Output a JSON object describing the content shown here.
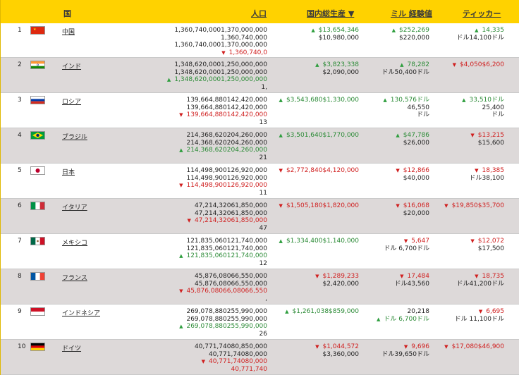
{
  "header": {
    "country": "国",
    "population": "人口",
    "gdp": "国内総生産 ▼",
    "military": "ミル 経験値",
    "ticker": "ティッカー"
  },
  "rows": [
    {
      "rank": "1",
      "flag": "china",
      "name": "中国",
      "pop": [
        {
          "t": "1,360,740,0001,370,000,000"
        },
        {
          "t": "1,360,740,000"
        },
        {
          "t": "1,360,740,0001,370,000,000"
        },
        {
          "t": "1,360,740,0",
          "c": "red",
          "a": "dn"
        }
      ],
      "gdp": [
        {
          "t": "$13,654,346",
          "c": "green",
          "a": "up"
        },
        {
          "t": "$10,980,000"
        }
      ],
      "mil": [
        {
          "t": "$252,269",
          "c": "green",
          "a": "up"
        },
        {
          "t": "$220,000"
        }
      ],
      "tic": [
        {
          "t": "14,335",
          "c": "green",
          "a": "up"
        },
        {
          "t": "ドル14,100ドル"
        }
      ]
    },
    {
      "rank": "2",
      "flag": "india",
      "name": "インド",
      "pop": [
        {
          "t": "1,348,620,0001,250,000,000"
        },
        {
          "t": "1,348,620,0001,250,000,000"
        },
        {
          "t": "1,348,620,0001,250,000,000",
          "c": "green",
          "a": "up"
        },
        {
          "t": "1,"
        }
      ],
      "gdp": [
        {
          "t": "$3,823,338",
          "c": "green",
          "a": "up"
        },
        {
          "t": "$2,090,000"
        }
      ],
      "mil": [
        {
          "t": "78,282",
          "c": "green",
          "a": "up"
        },
        {
          "t": "ドル50,400ドル"
        }
      ],
      "tic": [
        {
          "t": "$4,050$6,200",
          "c": "red",
          "a": "dn"
        }
      ]
    },
    {
      "rank": "3",
      "flag": "russia",
      "name": "ロシア",
      "pop": [
        {
          "t": "139,664,880142,420,000"
        },
        {
          "t": "139,664,880142,420,000"
        },
        {
          "t": "139,664,880142,420,000",
          "c": "red",
          "a": "dn"
        },
        {
          "t": "13"
        }
      ],
      "gdp": [
        {
          "t": "$3,543,680$1,330,000",
          "c": "green",
          "a": "up"
        }
      ],
      "mil": [
        {
          "t": "130,576ドル",
          "c": "green",
          "a": "up"
        },
        {
          "t": "46,550"
        },
        {
          "t": "ドル"
        }
      ],
      "tic": [
        {
          "t": "33,510ドル",
          "c": "green",
          "a": "up"
        },
        {
          "t": "25,400"
        },
        {
          "t": "ドル"
        }
      ]
    },
    {
      "rank": "4",
      "flag": "brazil",
      "name": "ブラジル",
      "pop": [
        {
          "t": "214,368,620204,260,000"
        },
        {
          "t": "214,368,620204,260,000"
        },
        {
          "t": "214,368,620204,260,000",
          "c": "green",
          "a": "up"
        },
        {
          "t": "21"
        }
      ],
      "gdp": [
        {
          "t": "$3,501,640$1,770,000",
          "c": "green",
          "a": "up"
        }
      ],
      "mil": [
        {
          "t": "$47,786",
          "c": "green",
          "a": "up"
        },
        {
          "t": "$26,000"
        }
      ],
      "tic": [
        {
          "t": "$13,215",
          "c": "red",
          "a": "dn"
        },
        {
          "t": "$15,600"
        }
      ]
    },
    {
      "rank": "5",
      "flag": "japan",
      "name": "日本",
      "pop": [
        {
          "t": "114,498,900126,920,000"
        },
        {
          "t": "114,498,900126,920,000"
        },
        {
          "t": "114,498,900126,920,000",
          "c": "red",
          "a": "dn"
        },
        {
          "t": "11"
        }
      ],
      "gdp": [
        {
          "t": "$2,772,840$4,120,000",
          "c": "red",
          "a": "dn"
        }
      ],
      "mil": [
        {
          "t": "$12,866",
          "c": "red",
          "a": "dn"
        },
        {
          "t": "$40,000"
        }
      ],
      "tic": [
        {
          "t": "18,385",
          "c": "red",
          "a": "dn"
        },
        {
          "t": "ドル38,100"
        }
      ]
    },
    {
      "rank": "6",
      "flag": "italy",
      "name": "イタリア",
      "pop": [
        {
          "t": "47,214,32061,850,000"
        },
        {
          "t": "47,214,32061,850,000"
        },
        {
          "t": "47,214,32061,850,000",
          "c": "red",
          "a": "dn"
        },
        {
          "t": "47"
        }
      ],
      "gdp": [
        {
          "t": "$1,505,180$1,820,000",
          "c": "red",
          "a": "dn"
        }
      ],
      "mil": [
        {
          "t": "$16,068",
          "c": "red",
          "a": "dn"
        },
        {
          "t": "$20,000"
        }
      ],
      "tic": [
        {
          "t": "$19,850$35,700",
          "c": "red",
          "a": "dn"
        }
      ]
    },
    {
      "rank": "7",
      "flag": "mexico",
      "name": "メキシコ",
      "pop": [
        {
          "t": "121,835,060121,740,000"
        },
        {
          "t": "121,835,060121,740,000"
        },
        {
          "t": "121,835,060121,740,000",
          "c": "green",
          "a": "up"
        },
        {
          "t": "12"
        }
      ],
      "gdp": [
        {
          "t": "$1,334,400$1,140,000",
          "c": "green",
          "a": "up"
        }
      ],
      "mil": [
        {
          "t": "5,647",
          "c": "red",
          "a": "dn"
        },
        {
          "t": "ドル 6,700ドル"
        }
      ],
      "tic": [
        {
          "t": "$12,072",
          "c": "red",
          "a": "dn"
        },
        {
          "t": "$17,500"
        }
      ]
    },
    {
      "rank": "8",
      "flag": "france",
      "name": "フランス",
      "pop": [
        {
          "t": "45,876,08066,550,000"
        },
        {
          "t": "45,876,08066,550,000"
        },
        {
          "t": "45,876,08066,08066,550",
          "c": "red",
          "a": "dn"
        },
        {
          "t": ","
        }
      ],
      "gdp": [
        {
          "t": "$1,289,233",
          "c": "red",
          "a": "dn"
        },
        {
          "t": "$2,420,000"
        }
      ],
      "mil": [
        {
          "t": "17,484",
          "c": "red",
          "a": "dn"
        },
        {
          "t": "ドル43,560"
        }
      ],
      "tic": [
        {
          "t": "18,735",
          "c": "red",
          "a": "dn"
        },
        {
          "t": "ドル41,200ドル"
        }
      ]
    },
    {
      "rank": "9",
      "flag": "indonesia",
      "name": "インドネシア",
      "pop": [
        {
          "t": "269,078,880255,990,000"
        },
        {
          "t": "269,078,880255,990,000"
        },
        {
          "t": "269,078,880255,990,000",
          "c": "green",
          "a": "up"
        },
        {
          "t": "26"
        }
      ],
      "gdp": [
        {
          "t": "$1,261,038$859,000",
          "c": "green",
          "a": "up"
        }
      ],
      "mil": [
        {
          "t": "20,218"
        },
        {
          "t": "ドル 6,700ドル",
          "c": "green",
          "a": "up"
        }
      ],
      "tic": [
        {
          "t": "6,695",
          "c": "red",
          "a": "dn"
        },
        {
          "t": "ドル 11,100ドル"
        }
      ]
    },
    {
      "rank": "10",
      "flag": "germany",
      "name": "ドイツ",
      "pop": [
        {
          "t": "40,771,74080,850,000"
        },
        {
          "t": "40,771,74080,000"
        },
        {
          "t": "40,771,74080,000",
          "c": "red",
          "a": "dn"
        },
        {
          "t": "40,771,740",
          "c": "red"
        }
      ],
      "gdp": [
        {
          "t": "$1,044,572",
          "c": "red",
          "a": "dn"
        },
        {
          "t": "$3,360,000"
        }
      ],
      "mil": [
        {
          "t": "9,696",
          "c": "red",
          "a": "dn"
        },
        {
          "t": "ドル39,650ドル"
        }
      ],
      "tic": [
        {
          "t": "$17,080$46,900",
          "c": "red",
          "a": "dn"
        }
      ]
    }
  ]
}
